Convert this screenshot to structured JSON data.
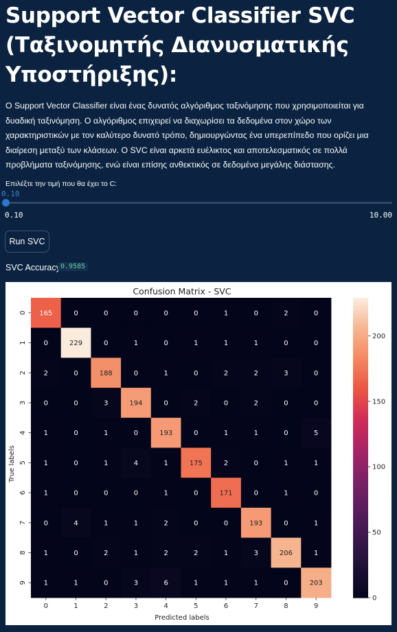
{
  "header": {
    "title": "Support Vector Classifier SVC (Ταξινομητής Διανυσματικής Υποστήριξης):"
  },
  "description": "Ο Support Vector Classifier είναι ένας δυνατός αλγόριθμος ταξινόμησης που χρησιμοποιείται για δυαδική ταξινόμηση. Ο αλγόριθμος επιχειρεί να διαχωρίσει τα δεδομένα στον χώρο των χαρακτηριστικών με τον καλύτερο δυνατό τρόπο, δημιουργώντας ένα υπερεπίπεδο που ορίζει μια διαίρεση μεταξύ των κλάσεων. Ο SVC είναι αρκετά ευέλικτος και αποτελεσματικός σε πολλά προβλήματα ταξινόμησης, ενώ είναι επίσης ανθεκτικός σε δεδομένα μεγάλης διάστασης.",
  "slider": {
    "label": "Επιλέξτε την τιμή που θα έχει το C:",
    "value": "0.10",
    "min": "0.10",
    "max": "10.00",
    "fraction": 0.0,
    "accent_color": "#2e77d0"
  },
  "run_button": {
    "label": "Run SVC"
  },
  "accuracy": {
    "label": "SVC Accuracy:",
    "value": "0.9585",
    "color": "#5ed39e"
  },
  "chart_data": {
    "type": "heatmap",
    "title": "Confusion Matrix - SVC",
    "xlabel": "Predicted labels",
    "ylabel": "True labels",
    "x_tick_labels": [
      "0",
      "1",
      "2",
      "3",
      "4",
      "5",
      "6",
      "7",
      "8",
      "9"
    ],
    "y_tick_labels": [
      "0",
      "1",
      "2",
      "3",
      "4",
      "5",
      "6",
      "7",
      "8",
      "9"
    ],
    "matrix": [
      [
        165,
        0,
        0,
        0,
        0,
        0,
        1,
        0,
        2,
        0
      ],
      [
        0,
        229,
        0,
        1,
        0,
        1,
        1,
        1,
        0,
        0
      ],
      [
        2,
        0,
        188,
        0,
        1,
        0,
        2,
        2,
        3,
        0
      ],
      [
        0,
        0,
        3,
        194,
        0,
        2,
        0,
        2,
        0,
        0
      ],
      [
        1,
        0,
        1,
        0,
        193,
        0,
        1,
        1,
        0,
        5
      ],
      [
        1,
        0,
        1,
        4,
        1,
        175,
        2,
        0,
        1,
        1
      ],
      [
        1,
        0,
        0,
        0,
        1,
        0,
        171,
        0,
        1,
        0
      ],
      [
        0,
        4,
        1,
        1,
        2,
        0,
        0,
        193,
        0,
        1
      ],
      [
        1,
        0,
        2,
        1,
        2,
        2,
        1,
        3,
        206,
        1
      ],
      [
        1,
        1,
        0,
        3,
        6,
        1,
        1,
        1,
        0,
        203
      ]
    ],
    "colorbar": {
      "range": [
        0,
        229
      ],
      "ticks": [
        0,
        50,
        100,
        150,
        200
      ],
      "colormap": "rocket"
    }
  }
}
